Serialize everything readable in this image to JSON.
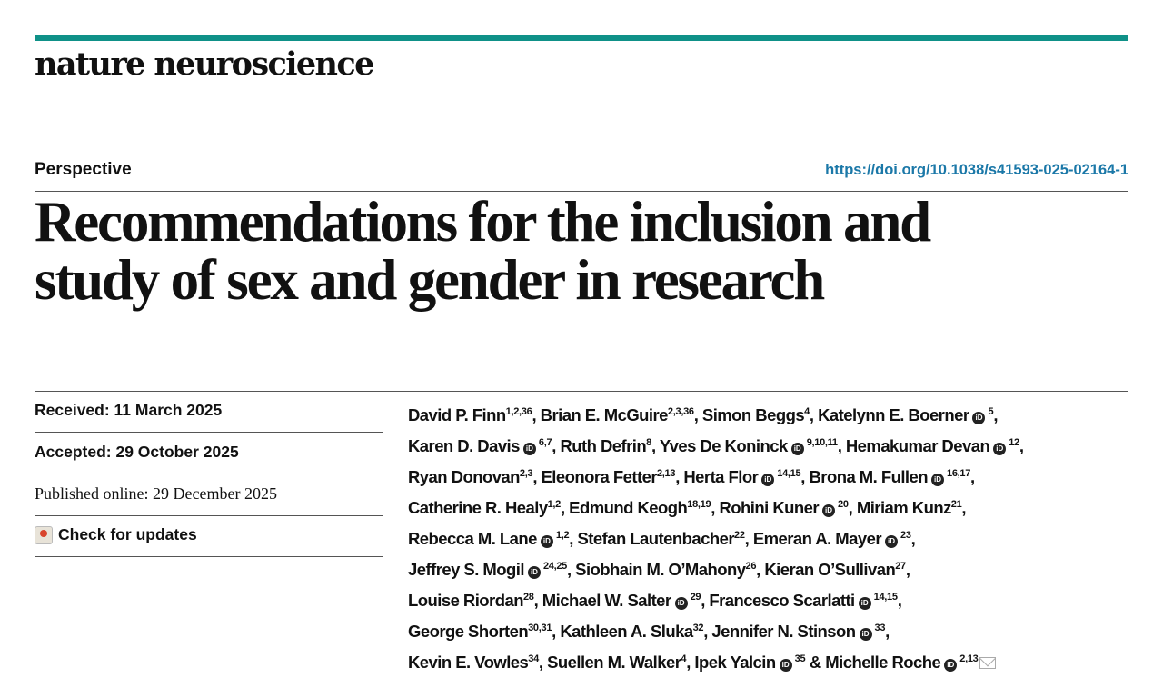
{
  "journal": "nature neuroscience",
  "article_type": "Perspective",
  "doi": "https://doi.org/10.1038/s41593-025-02164-1",
  "title_lines": [
    "Recommendations for the inclusion and",
    "study of sex and gender in research"
  ],
  "dates": {
    "received": "Received: 11 March 2025",
    "accepted": "Accepted: 29 October 2025",
    "published": "Published online: 29 December 2025"
  },
  "check_updates": "Check for updates",
  "orcid_glyph": "iD",
  "author_lines": [
    [
      {
        "name": "David P. Finn",
        "sup": "1,2,36",
        "orcid": false,
        "sep": ", "
      },
      {
        "name": "Brian E. McGuire",
        "sup": "2,3,36",
        "orcid": false,
        "sep": ", "
      },
      {
        "name": "Simon Beggs",
        "sup": "4",
        "orcid": false,
        "sep": ", "
      },
      {
        "name": "Katelynn E. Boerner",
        "sup": "5",
        "orcid": true,
        "sep": ","
      }
    ],
    [
      {
        "name": "Karen D. Davis",
        "sup": "6,7",
        "orcid": true,
        "sep": ", "
      },
      {
        "name": "Ruth Defrin",
        "sup": "8",
        "orcid": false,
        "sep": ", "
      },
      {
        "name": "Yves De Koninck",
        "sup": "9,10,11",
        "orcid": true,
        "sep": ", "
      },
      {
        "name": "Hemakumar Devan",
        "sup": "12",
        "orcid": true,
        "sep": ","
      }
    ],
    [
      {
        "name": "Ryan Donovan",
        "sup": "2,3",
        "orcid": false,
        "sep": ", "
      },
      {
        "name": "Eleonora Fetter",
        "sup": "2,13",
        "orcid": false,
        "sep": ", "
      },
      {
        "name": "Herta Flor",
        "sup": "14,15",
        "orcid": true,
        "sep": ", "
      },
      {
        "name": "Brona M. Fullen",
        "sup": "16,17",
        "orcid": true,
        "sep": ","
      }
    ],
    [
      {
        "name": "Catherine R. Healy",
        "sup": "1,2",
        "orcid": false,
        "sep": ", "
      },
      {
        "name": "Edmund Keogh",
        "sup": "18,19",
        "orcid": false,
        "sep": ", "
      },
      {
        "name": "Rohini Kuner",
        "sup": "20",
        "orcid": true,
        "sep": ", "
      },
      {
        "name": "Miriam Kunz",
        "sup": "21",
        "orcid": false,
        "sep": ","
      }
    ],
    [
      {
        "name": "Rebecca M. Lane",
        "sup": "1,2",
        "orcid": true,
        "sep": ", "
      },
      {
        "name": "Stefan Lautenbacher",
        "sup": "22",
        "orcid": false,
        "sep": ", "
      },
      {
        "name": "Emeran A. Mayer",
        "sup": "23",
        "orcid": true,
        "sep": ","
      }
    ],
    [
      {
        "name": "Jeffrey S. Mogil",
        "sup": "24,25",
        "orcid": true,
        "sep": ", "
      },
      {
        "name": "Siobhain M. O’Mahony",
        "sup": "26",
        "orcid": false,
        "sep": ", "
      },
      {
        "name": "Kieran O’Sullivan",
        "sup": "27",
        "orcid": false,
        "sep": ","
      }
    ],
    [
      {
        "name": "Louise Riordan",
        "sup": "28",
        "orcid": false,
        "sep": ", "
      },
      {
        "name": "Michael W. Salter",
        "sup": "29",
        "orcid": true,
        "sep": ", "
      },
      {
        "name": "Francesco Scarlatti",
        "sup": "14,15",
        "orcid": true,
        "sep": ","
      }
    ],
    [
      {
        "name": "George Shorten",
        "sup": "30,31",
        "orcid": false,
        "sep": ", "
      },
      {
        "name": "Kathleen A. Sluka",
        "sup": "32",
        "orcid": false,
        "sep": ", "
      },
      {
        "name": "Jennifer N. Stinson",
        "sup": "33",
        "orcid": true,
        "sep": ","
      }
    ],
    [
      {
        "name": "Kevin E. Vowles",
        "sup": "34",
        "orcid": false,
        "sep": ", "
      },
      {
        "name": "Suellen M. Walker",
        "sup": "4",
        "orcid": false,
        "sep": ", "
      },
      {
        "name": "Ipek Yalcin",
        "sup": "35",
        "orcid": true,
        "sep": " & "
      },
      {
        "name": "Michelle Roche",
        "sup": "2,13",
        "orcid": true,
        "sep": "",
        "mail": true
      }
    ]
  ]
}
